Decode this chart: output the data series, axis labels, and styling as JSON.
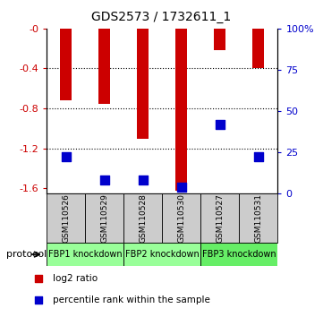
{
  "title": "GDS2573 / 1732611_1",
  "samples": [
    "GSM110526",
    "GSM110529",
    "GSM110528",
    "GSM110530",
    "GSM110527",
    "GSM110531"
  ],
  "log2_ratio": [
    -0.72,
    -0.75,
    -1.1,
    -1.62,
    -0.22,
    -0.4
  ],
  "percentile_rank": [
    22,
    8,
    8,
    4,
    42,
    22
  ],
  "ylim_left": [
    -1.65,
    0.0
  ],
  "ylim_right": [
    0,
    100
  ],
  "left_ticks": [
    0.0,
    -0.4,
    -0.8,
    -1.2,
    -1.6
  ],
  "right_ticks": [
    0,
    25,
    50,
    75,
    100
  ],
  "groups": [
    {
      "label": "FBP1 knockdown",
      "color": "#99ff99"
    },
    {
      "label": "FBP2 knockdown",
      "color": "#99ff99"
    },
    {
      "label": "FBP3 knockdown",
      "color": "#66ee66"
    }
  ],
  "bar_color": "#cc0000",
  "dot_color": "#0000cc",
  "bar_width": 0.3,
  "dot_size": 45,
  "background_color": "#ffffff",
  "plot_bg": "#ffffff",
  "sample_box_color": "#cccccc",
  "legend_red_label": "log2 ratio",
  "legend_blue_label": "percentile rank within the sample",
  "protocol_label": "protocol"
}
